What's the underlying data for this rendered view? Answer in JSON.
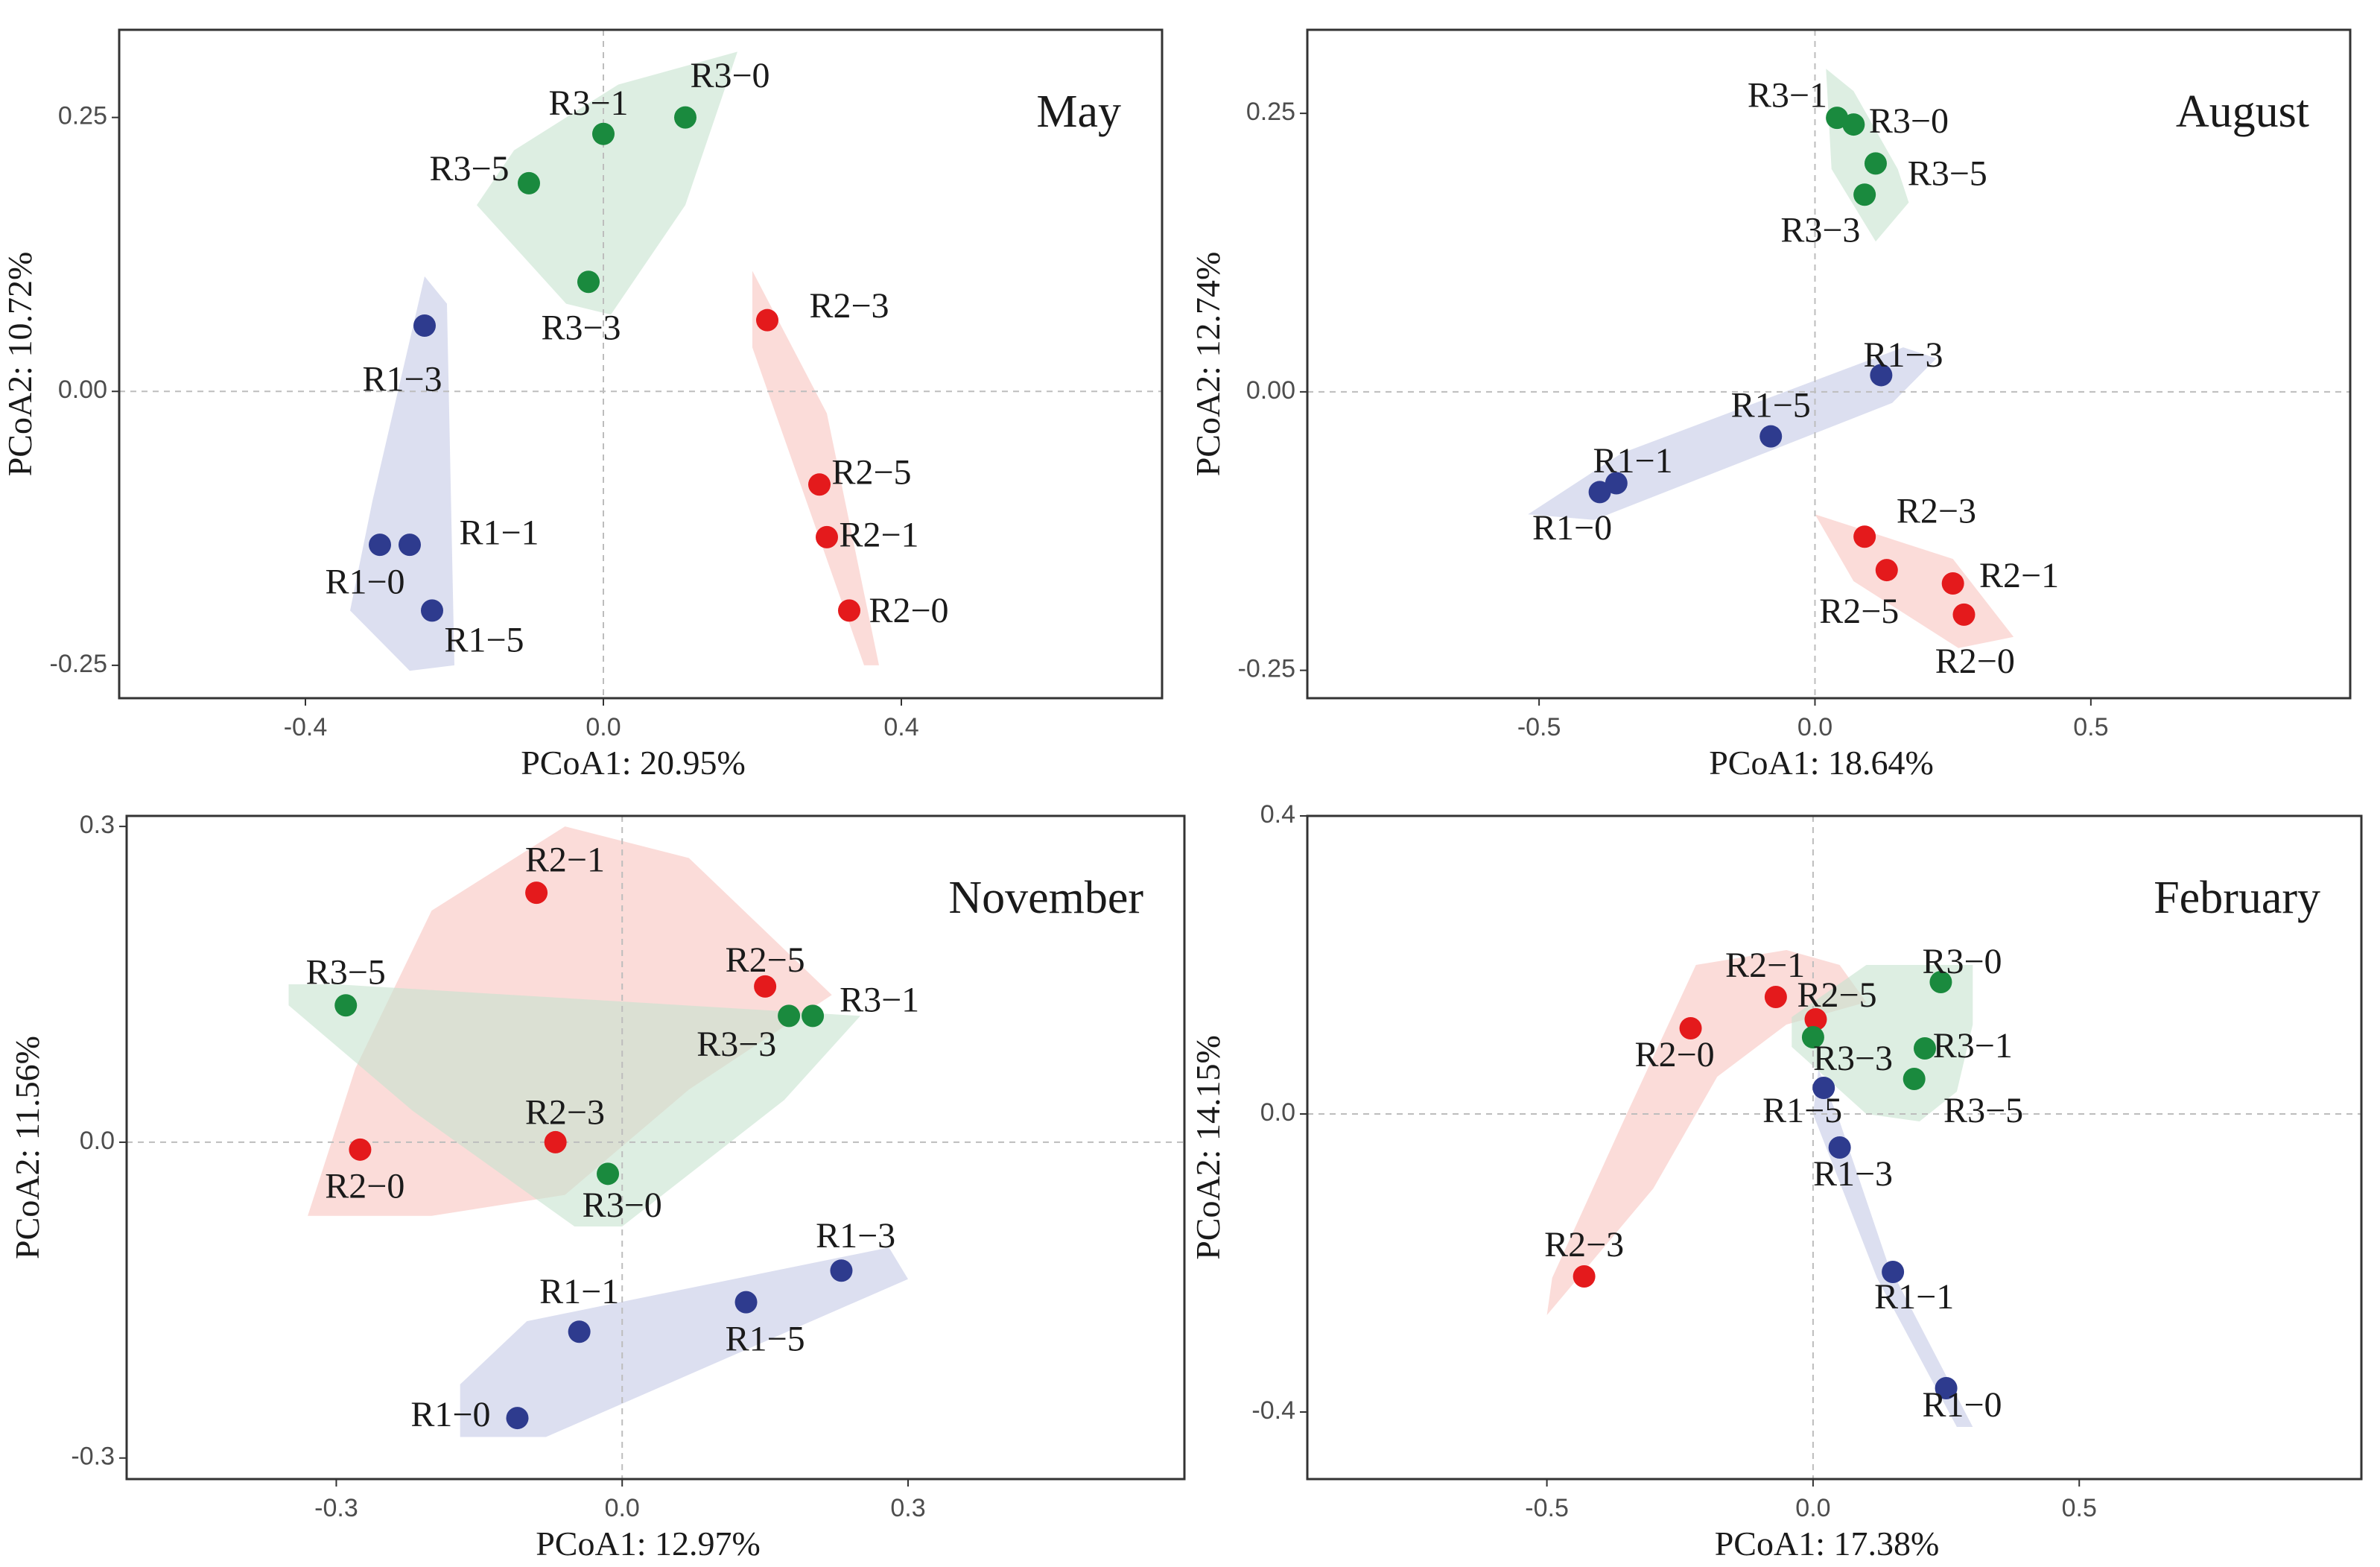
{
  "colors": {
    "R1": "#2E3B8E",
    "R2": "#E41A1C",
    "R3": "#1A8A3E",
    "R1_hull": "#C5CAE6",
    "R2_hull": "#F8C4C0",
    "R3_hull": "#C6E3CF",
    "R2_R3_overlap": "#DB6A1F"
  },
  "chart_data": [
    {
      "type": "scatter",
      "title": "May",
      "xlabel": "PCoA1:  20.95%",
      "ylabel": "PCoA2:  10.72%",
      "xlim": [
        -0.65,
        0.75
      ],
      "ylim": [
        -0.28,
        0.33
      ],
      "xticks": [
        -0.4,
        0.0,
        0.4
      ],
      "xtick_labels": [
        "-0.4",
        "0.0",
        "0.4"
      ],
      "yticks": [
        -0.25,
        0.0,
        0.25
      ],
      "ytick_labels": [
        "-0.25",
        "0.00",
        "0.25"
      ],
      "points": [
        {
          "label": "R1−0",
          "group": "R1",
          "x": -0.3,
          "y": -0.14,
          "lx": -0.32,
          "ly": -0.177
        },
        {
          "label": "R1−1",
          "group": "R1",
          "x": -0.26,
          "y": -0.14,
          "lx": -0.14,
          "ly": -0.132
        },
        {
          "label": "R1−3",
          "group": "R1",
          "x": -0.24,
          "y": 0.06,
          "lx": -0.27,
          "ly": 0.008
        },
        {
          "label": "R1−5",
          "group": "R1",
          "x": -0.23,
          "y": -0.2,
          "lx": -0.16,
          "ly": -0.23
        },
        {
          "label": "R2−0",
          "group": "R2",
          "x": 0.33,
          "y": -0.2,
          "lx": 0.41,
          "ly": -0.203
        },
        {
          "label": "R2−1",
          "group": "R2",
          "x": 0.3,
          "y": -0.133,
          "lx": 0.37,
          "ly": -0.134
        },
        {
          "label": "R2−3",
          "group": "R2",
          "x": 0.22,
          "y": 0.065,
          "lx": 0.33,
          "ly": 0.075
        },
        {
          "label": "R2−5",
          "group": "R2",
          "x": 0.29,
          "y": -0.085,
          "lx": 0.36,
          "ly": -0.077
        },
        {
          "label": "R3−0",
          "group": "R3",
          "x": 0.11,
          "y": 0.25,
          "lx": 0.17,
          "ly": 0.285
        },
        {
          "label": "R3−1",
          "group": "R3",
          "x": 0.0,
          "y": 0.235,
          "lx": -0.02,
          "ly": 0.26
        },
        {
          "label": "R3−3",
          "group": "R3",
          "x": -0.02,
          "y": 0.1,
          "lx": -0.03,
          "ly": 0.055
        },
        {
          "label": "R3−5",
          "group": "R3",
          "x": -0.1,
          "y": 0.19,
          "lx": -0.18,
          "ly": 0.2
        }
      ],
      "hulls": [
        {
          "group": "R1",
          "vertices": [
            [
              -0.24,
              0.105
            ],
            [
              -0.21,
              0.08
            ],
            [
              -0.2,
              -0.25
            ],
            [
              -0.26,
              -0.255
            ],
            [
              -0.34,
              -0.2
            ],
            [
              -0.31,
              -0.1
            ]
          ]
        },
        {
          "group": "R2",
          "vertices": [
            [
              0.2,
              0.11
            ],
            [
              0.3,
              -0.02
            ],
            [
              0.37,
              -0.25
            ],
            [
              0.35,
              -0.25
            ],
            [
              0.2,
              0.04
            ]
          ]
        },
        {
          "group": "R3",
          "vertices": [
            [
              0.18,
              0.31
            ],
            [
              0.11,
              0.17
            ],
            [
              0.01,
              0.07
            ],
            [
              -0.05,
              0.08
            ],
            [
              -0.17,
              0.17
            ],
            [
              -0.12,
              0.22
            ],
            [
              0.02,
              0.28
            ]
          ]
        }
      ]
    },
    {
      "type": "scatter",
      "title": "August",
      "xlabel": "PCoA1:  18.64%",
      "ylabel": "PCoA2:  12.74%",
      "xlim": [
        -0.92,
        0.97
      ],
      "ylim": [
        -0.275,
        0.325
      ],
      "xticks": [
        -0.5,
        0.0,
        0.5
      ],
      "xtick_labels": [
        "-0.5",
        "0.0",
        "0.5"
      ],
      "yticks": [
        -0.25,
        0.0,
        0.25
      ],
      "ytick_labels": [
        "-0.25",
        "0.00",
        "0.25"
      ],
      "points": [
        {
          "label": "R1−0",
          "group": "R1",
          "x": -0.39,
          "y": -0.09,
          "lx": -0.44,
          "ly": -0.125
        },
        {
          "label": "R1−1",
          "group": "R1",
          "x": -0.36,
          "y": -0.082,
          "lx": -0.33,
          "ly": -0.065
        },
        {
          "label": "R1−3",
          "group": "R1",
          "x": 0.12,
          "y": 0.015,
          "lx": 0.16,
          "ly": 0.03
        },
        {
          "label": "R1−5",
          "group": "R1",
          "x": -0.08,
          "y": -0.04,
          "lx": -0.08,
          "ly": -0.015
        },
        {
          "label": "R2−0",
          "group": "R2",
          "x": 0.27,
          "y": -0.2,
          "lx": 0.29,
          "ly": -0.245
        },
        {
          "label": "R2−1",
          "group": "R2",
          "x": 0.25,
          "y": -0.172,
          "lx": 0.37,
          "ly": -0.168
        },
        {
          "label": "R2−3",
          "group": "R2",
          "x": 0.09,
          "y": -0.13,
          "lx": 0.22,
          "ly": -0.11
        },
        {
          "label": "R2−5",
          "group": "R2",
          "x": 0.13,
          "y": -0.16,
          "lx": 0.08,
          "ly": -0.2
        },
        {
          "label": "R3−0",
          "group": "R3",
          "x": 0.07,
          "y": 0.24,
          "lx": 0.17,
          "ly": 0.24
        },
        {
          "label": "R3−1",
          "group": "R3",
          "x": 0.04,
          "y": 0.246,
          "lx": -0.05,
          "ly": 0.263
        },
        {
          "label": "R3−3",
          "group": "R3",
          "x": 0.09,
          "y": 0.177,
          "lx": 0.01,
          "ly": 0.142
        },
        {
          "label": "R3−5",
          "group": "R3",
          "x": 0.11,
          "y": 0.205,
          "lx": 0.24,
          "ly": 0.193
        }
      ],
      "hulls": [
        {
          "group": "R1",
          "vertices": [
            [
              0.22,
              0.03
            ],
            [
              0.14,
              -0.01
            ],
            [
              -0.4,
              -0.115
            ],
            [
              -0.52,
              -0.11
            ],
            [
              -0.35,
              -0.055
            ],
            [
              0.16,
              0.04
            ]
          ]
        },
        {
          "group": "R2",
          "vertices": [
            [
              0.0,
              -0.11
            ],
            [
              0.25,
              -0.15
            ],
            [
              0.36,
              -0.22
            ],
            [
              0.26,
              -0.23
            ],
            [
              0.07,
              -0.17
            ]
          ]
        },
        {
          "group": "R3",
          "vertices": [
            [
              0.02,
              0.29
            ],
            [
              0.07,
              0.27
            ],
            [
              0.15,
              0.2
            ],
            [
              0.17,
              0.17
            ],
            [
              0.11,
              0.135
            ],
            [
              0.03,
              0.2
            ]
          ]
        }
      ]
    },
    {
      "type": "scatter",
      "title": "November",
      "xlabel": "PCoA1:  12.97%",
      "ylabel": "PCoA2:  11.56%",
      "xlim": [
        -0.52,
        0.59
      ],
      "ylim": [
        -0.32,
        0.31
      ],
      "xticks": [
        -0.3,
        0.0,
        0.3
      ],
      "xtick_labels": [
        "-0.3",
        "0.0",
        "0.3"
      ],
      "yticks": [
        -0.3,
        0.0,
        0.3
      ],
      "ytick_labels": [
        "-0.3",
        "0.0",
        "0.3"
      ],
      "points": [
        {
          "label": "R1−0",
          "group": "R1",
          "x": -0.11,
          "y": -0.262,
          "lx": -0.18,
          "ly": -0.262
        },
        {
          "label": "R1−1",
          "group": "R1",
          "x": -0.045,
          "y": -0.18,
          "lx": -0.045,
          "ly": -0.145
        },
        {
          "label": "R1−3",
          "group": "R1",
          "x": 0.23,
          "y": -0.122,
          "lx": 0.245,
          "ly": -0.092
        },
        {
          "label": "R1−5",
          "group": "R1",
          "x": 0.13,
          "y": -0.152,
          "lx": 0.15,
          "ly": -0.19
        },
        {
          "label": "R2−0",
          "group": "R2",
          "x": -0.275,
          "y": -0.007,
          "lx": -0.27,
          "ly": -0.045
        },
        {
          "label": "R2−1",
          "group": "R2",
          "x": -0.09,
          "y": 0.237,
          "lx": -0.06,
          "ly": 0.265
        },
        {
          "label": "R2−3",
          "group": "R2",
          "x": -0.07,
          "y": 0.0,
          "lx": -0.06,
          "ly": 0.025
        },
        {
          "label": "R2−5",
          "group": "R2",
          "x": 0.15,
          "y": 0.148,
          "lx": 0.15,
          "ly": 0.17
        },
        {
          "label": "R3−0",
          "group": "R3",
          "x": -0.015,
          "y": -0.03,
          "lx": 0.0,
          "ly": -0.063
        },
        {
          "label": "R3−1",
          "group": "R3",
          "x": 0.2,
          "y": 0.12,
          "lx": 0.27,
          "ly": 0.132
        },
        {
          "label": "R3−3",
          "group": "R3",
          "x": 0.175,
          "y": 0.12,
          "lx": 0.12,
          "ly": 0.09
        },
        {
          "label": "R3−5",
          "group": "R3",
          "x": -0.29,
          "y": 0.13,
          "lx": -0.29,
          "ly": 0.158
        }
      ],
      "hulls": [
        {
          "group": "R1",
          "vertices": [
            [
              0.28,
              -0.1
            ],
            [
              -0.1,
              -0.17
            ],
            [
              -0.17,
              -0.23
            ],
            [
              -0.17,
              -0.28
            ],
            [
              -0.08,
              -0.28
            ],
            [
              0.3,
              -0.13
            ]
          ]
        },
        {
          "group": "R2",
          "vertices": [
            [
              -0.06,
              0.3
            ],
            [
              0.07,
              0.27
            ],
            [
              0.22,
              0.14
            ],
            [
              0.07,
              0.05
            ],
            [
              -0.06,
              -0.05
            ],
            [
              -0.2,
              -0.07
            ],
            [
              -0.33,
              -0.07
            ],
            [
              -0.28,
              0.07
            ],
            [
              -0.2,
              0.22
            ]
          ]
        },
        {
          "group": "R3",
          "vertices": [
            [
              -0.35,
              0.15
            ],
            [
              -0.3,
              0.15
            ],
            [
              0.25,
              0.12
            ],
            [
              0.17,
              0.04
            ],
            [
              0.0,
              -0.08
            ],
            [
              -0.05,
              -0.08
            ],
            [
              -0.22,
              0.03
            ],
            [
              -0.35,
              0.13
            ]
          ]
        }
      ]
    },
    {
      "type": "scatter",
      "title": "February",
      "xlabel": "PCoA1:  17.38%",
      "ylabel": "PCoA2:  14.15%",
      "xlim": [
        -0.95,
        1.03
      ],
      "ylim": [
        -0.49,
        0.4
      ],
      "xticks": [
        -0.5,
        0.0,
        0.5
      ],
      "xtick_labels": [
        "-0.5",
        "0.0",
        "0.5"
      ],
      "yticks": [
        -0.4,
        0.0,
        0.4
      ],
      "ytick_labels": [
        "-0.4",
        "0.0",
        "0.4"
      ],
      "points": [
        {
          "label": "R1−0",
          "group": "R1",
          "x": 0.25,
          "y": -0.368,
          "lx": 0.28,
          "ly": -0.395
        },
        {
          "label": "R1−1",
          "group": "R1",
          "x": 0.15,
          "y": -0.212,
          "lx": 0.19,
          "ly": -0.25
        },
        {
          "label": "R1−3",
          "group": "R1",
          "x": 0.05,
          "y": -0.045,
          "lx": 0.075,
          "ly": -0.085
        },
        {
          "label": "R1−5",
          "group": "R1",
          "x": 0.02,
          "y": 0.035,
          "lx": -0.02,
          "ly": 0.0
        },
        {
          "label": "R2−0",
          "group": "R2",
          "x": -0.23,
          "y": 0.115,
          "lx": -0.26,
          "ly": 0.075
        },
        {
          "label": "R2−1",
          "group": "R2",
          "x": -0.07,
          "y": 0.157,
          "lx": -0.09,
          "ly": 0.195
        },
        {
          "label": "R2−3",
          "group": "R2",
          "x": -0.43,
          "y": -0.218,
          "lx": -0.43,
          "ly": -0.18
        },
        {
          "label": "R2−5",
          "group": "R2",
          "x": 0.005,
          "y": 0.127,
          "lx": 0.045,
          "ly": 0.155
        },
        {
          "label": "R3−0",
          "group": "R3",
          "x": 0.24,
          "y": 0.177,
          "lx": 0.28,
          "ly": 0.2
        },
        {
          "label": "R3−1",
          "group": "R3",
          "x": 0.21,
          "y": 0.088,
          "lx": 0.3,
          "ly": 0.087
        },
        {
          "label": "R3−3",
          "group": "R3",
          "x": 0.0,
          "y": 0.103,
          "lx": 0.075,
          "ly": 0.07
        },
        {
          "label": "R3−5",
          "group": "R3",
          "x": 0.19,
          "y": 0.047,
          "lx": 0.32,
          "ly": 0.0
        }
      ],
      "hulls": [
        {
          "group": "R1",
          "vertices": [
            [
              0.01,
              0.06
            ],
            [
              0.05,
              -0.01
            ],
            [
              0.14,
              -0.2
            ],
            [
              0.3,
              -0.42
            ],
            [
              0.27,
              -0.42
            ],
            [
              0.12,
              -0.22
            ],
            [
              0.0,
              0.0
            ]
          ]
        },
        {
          "group": "R2",
          "vertices": [
            [
              -0.22,
              0.2
            ],
            [
              -0.05,
              0.22
            ],
            [
              0.05,
              0.2
            ],
            [
              0.1,
              0.15
            ],
            [
              -0.05,
              0.12
            ],
            [
              -0.18,
              0.05
            ],
            [
              -0.3,
              -0.1
            ],
            [
              -0.5,
              -0.27
            ],
            [
              -0.49,
              -0.22
            ],
            [
              -0.35,
              0.0
            ]
          ]
        },
        {
          "group": "R3",
          "vertices": [
            [
              0.1,
              0.2
            ],
            [
              0.3,
              0.2
            ],
            [
              0.3,
              0.12
            ],
            [
              0.27,
              0.03
            ],
            [
              0.2,
              -0.01
            ],
            [
              0.1,
              0.0
            ],
            [
              -0.04,
              0.09
            ],
            [
              -0.04,
              0.13
            ]
          ]
        }
      ]
    }
  ]
}
